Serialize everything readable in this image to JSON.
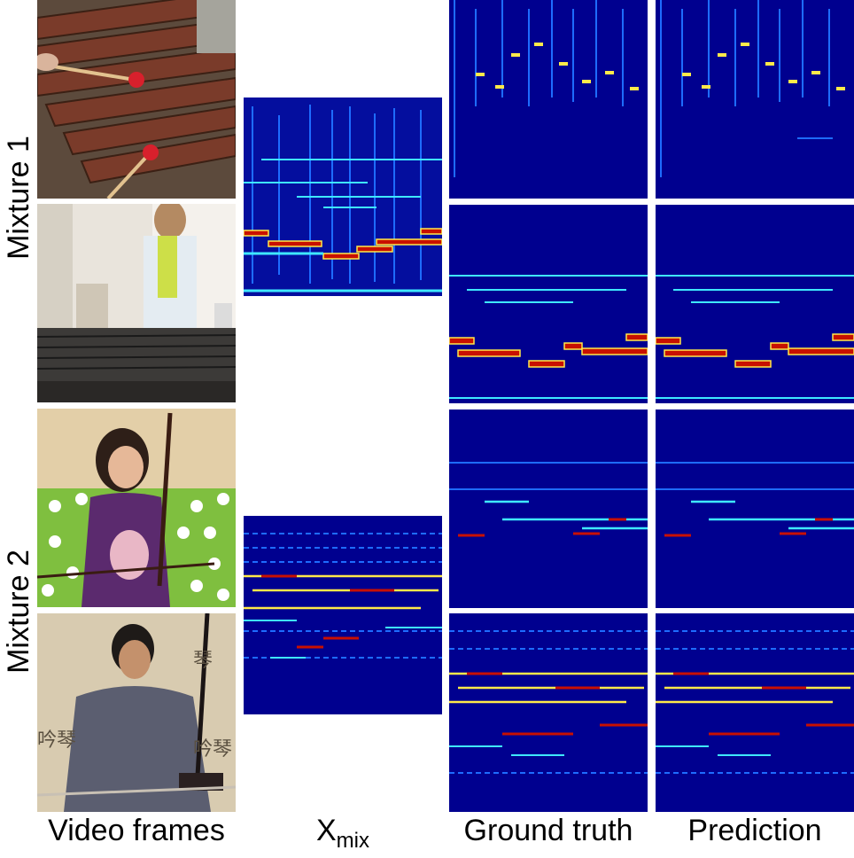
{
  "rows": [
    {
      "label": "Mixture 1"
    },
    {
      "label": "Mixture 2"
    }
  ],
  "columns": {
    "video_frames": "Video frames",
    "mix_main": "X",
    "mix_sub": "mix",
    "ground_truth": "Ground truth",
    "prediction": "Prediction"
  },
  "colors": {
    "spec_background": "#00008f",
    "spec_low": "#1e6cff",
    "spec_mid": "#3fe8ff",
    "spec_high": "#ffe94a",
    "spec_peak": "#c81000"
  }
}
